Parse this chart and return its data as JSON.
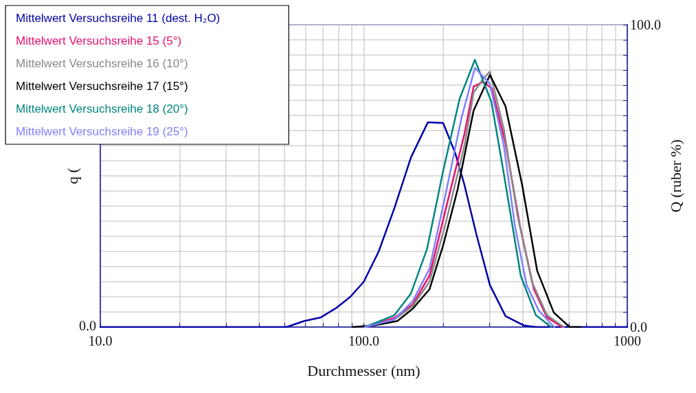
{
  "chart_data": {
    "type": "line",
    "xlabel": "Durchmesser (nm)",
    "ylabel": "q (",
    "y2label": "Q (ruber %)",
    "log": "x",
    "grid": true,
    "legend": "top left",
    "marker": "none",
    "line_style": "solid",
    "xlim": [
      10,
      1000
    ],
    "xticks": [
      {
        "value": 10,
        "label": "10.0"
      },
      {
        "value": 20,
        "label": null
      },
      {
        "value": 30,
        "label": null
      },
      {
        "value": 40,
        "label": null
      },
      {
        "value": 50,
        "label": null
      },
      {
        "value": 60,
        "label": null
      },
      {
        "value": 70,
        "label": null
      },
      {
        "value": 80,
        "label": null
      },
      {
        "value": 90,
        "label": null
      },
      {
        "value": 100,
        "label": "100.0"
      },
      {
        "value": 200,
        "label": null
      },
      {
        "value": 300,
        "label": null
      },
      {
        "value": 400,
        "label": null
      },
      {
        "value": 500,
        "label": null
      },
      {
        "value": 600,
        "label": null
      },
      {
        "value": 700,
        "label": null
      },
      {
        "value": 800,
        "label": null
      },
      {
        "value": 900,
        "label": null
      },
      1000
    ],
    "annotations": [
      "0.0"
    ],
    "y2lim": [
      0,
      100
    ],
    "y2ticks": [
      {
        "value": 0,
        "label": "0.0"
      },
      {
        "value": 5,
        "label": null
      },
      {
        "value": 10,
        "label": null
      },
      {
        "value": 15,
        "label": null
      },
      {
        "value": 20,
        "label": null
      },
      {
        "value": 25,
        "label": null
      },
      {
        "value": 30,
        "label": null
      },
      {
        "value": 35,
        "label": null
      },
      {
        "value": 40,
        "label": null
      },
      {
        "value": 45,
        "label": null
      },
      {
        "value": 50,
        "label": null
      },
      {
        "value": 55,
        "label": null
      },
      {
        "value": 60,
        "label": null
      },
      {
        "value": 65,
        "label": null
      },
      {
        "value": 70,
        "label": null
      },
      {
        "value": 75,
        "label": null
      },
      {
        "value": 80,
        "label": null
      },
      {
        "value": 85,
        "label": null
      },
      {
        "value": 90,
        "label": null
      },
      {
        "value": 95,
        "label": null
      },
      {
        "value": 100,
        "label": "100.0"
      }
    ],
    "series": [
      {
        "name": "Mittelwert Versuchsreihe 11 (dest. H₂O)",
        "color": "#0000a8",
        "axis": "y2",
        "x": [
          10,
          50.9,
          59.4,
          68.7,
          78.9,
          88.9,
          100,
          113.9,
          130.6,
          151,
          175,
          200,
          222,
          241,
          267,
          301,
          345,
          406,
          450,
          1000
        ],
        "values": [
          0,
          0,
          2.0,
          3.2,
          6.4,
          10,
          15,
          25,
          39.3,
          56.1,
          67.7,
          67.5,
          57.7,
          47,
          30.9,
          13.9,
          3.6,
          0.5,
          0,
          0
        ]
      },
      {
        "name": "Mittelwert Versuchsreihe 15 (5°)",
        "color": "#e8106a",
        "axis": "y2",
        "x": [
          101,
          130.6,
          153.5,
          177.6,
          205,
          241,
          261,
          283,
          306,
          345,
          392,
          442,
          496,
          565
        ],
        "values": [
          0,
          3,
          7.5,
          17,
          39.3,
          63.9,
          79.5,
          81.1,
          79,
          60.7,
          33.2,
          12.5,
          3.2,
          0
        ]
      },
      {
        "name": "Mittelwert Versuchsreihe 16 (10°)",
        "color": "#888888",
        "axis": "y2",
        "x": [
          101,
          130.6,
          153.5,
          177.6,
          205,
          241,
          261,
          283,
          301,
          340,
          383,
          435,
          496,
          574
        ],
        "values": [
          0,
          2.5,
          7,
          15,
          34.7,
          60,
          77.5,
          82,
          84.5,
          65.5,
          37,
          14.8,
          3.9,
          0
        ]
      },
      {
        "name": "Mittelwert Versuchsreihe 17 (15°)",
        "color": "#000000",
        "axis": "y2",
        "x": [
          90.5,
          109,
          134,
          153.5,
          177.6,
          200,
          227,
          261,
          301,
          345,
          399,
          455,
          526,
          604,
          665
        ],
        "values": [
          0,
          0.5,
          2,
          6.1,
          12.5,
          27,
          45.5,
          71.6,
          83.4,
          73,
          47,
          18.6,
          4.8,
          0,
          0
        ]
      },
      {
        "name": "Mittelwert Versuchsreihe 18 (20°)",
        "color": "#00857f",
        "axis": "y2",
        "x": [
          101,
          130.6,
          151,
          174,
          200,
          231,
          264,
          305,
          340,
          394,
          450,
          514
        ],
        "values": [
          0,
          3.9,
          11.1,
          26,
          51.6,
          75.5,
          88.4,
          74.5,
          50.7,
          17,
          3.9,
          0
        ]
      },
      {
        "name": "Mittelwert Versuchsreihe 19 (25°)",
        "color": "#8080ff",
        "axis": "y2",
        "x": [
          101,
          130.6,
          153.5,
          177.6,
          205,
          235,
          264,
          301,
          340,
          375,
          415,
          461,
          528
        ],
        "values": [
          0,
          2.5,
          8.6,
          19.3,
          44.5,
          69.3,
          85.7,
          80.5,
          60,
          33.2,
          13.9,
          5.5,
          0
        ]
      }
    ]
  }
}
